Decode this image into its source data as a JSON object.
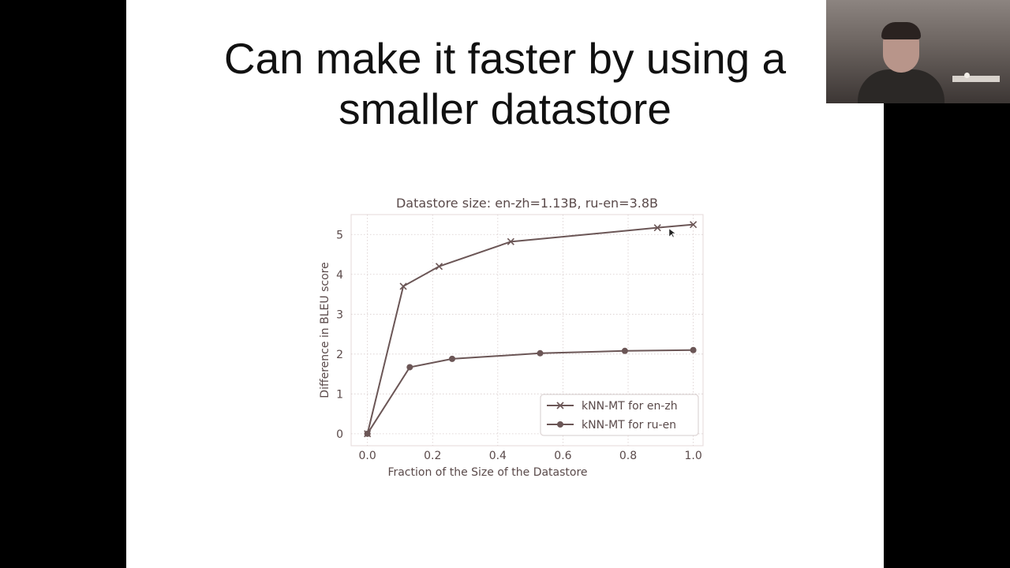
{
  "slide": {
    "title_lines": [
      "Can make it faster by using a",
      "smaller datastore"
    ]
  },
  "chart_data": {
    "type": "line",
    "title": "Datastore size: en-zh=1.13B, ru-en=3.8B",
    "xlabel": "Fraction of the Size of the Datastore",
    "ylabel": "Difference in BLEU score",
    "xlim": [
      -0.05,
      1.03
    ],
    "ylim": [
      -0.3,
      5.5
    ],
    "xticks": [
      0.0,
      0.2,
      0.4,
      0.6,
      0.8,
      1.0
    ],
    "xtick_labels": [
      "0.0",
      "0.2",
      "0.4",
      "0.6",
      "0.8",
      "1.0"
    ],
    "yticks": [
      0,
      1,
      2,
      3,
      4,
      5
    ],
    "ytick_labels": [
      "0",
      "1",
      "2",
      "3",
      "4",
      "5"
    ],
    "grid": true,
    "legend_position": "bottom-right",
    "series": [
      {
        "name": "kNN-MT for en-zh",
        "marker": "x",
        "x": [
          0.0,
          0.11,
          0.22,
          0.44,
          0.89,
          1.0
        ],
        "y": [
          0.0,
          3.7,
          4.2,
          4.82,
          5.17,
          5.25
        ]
      },
      {
        "name": "kNN-MT for ru-en",
        "marker": "o",
        "x": [
          0.0,
          0.13,
          0.26,
          0.53,
          0.79,
          1.0
        ],
        "y": [
          0.0,
          1.67,
          1.88,
          2.02,
          2.08,
          2.1
        ]
      }
    ],
    "color": "#6b5656"
  },
  "webcam": {
    "description_icon": "presenter-video-icon"
  }
}
